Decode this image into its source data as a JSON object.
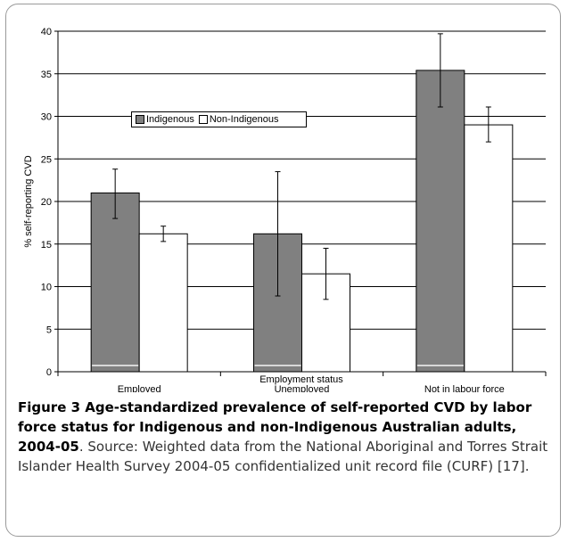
{
  "figure": {
    "caption_title": "Figure 3 Age-standardized prevalence of self-reported CVD by labor force status for Indigenous and non-Indigenous Australian adults, 2004-05",
    "caption_body": ". Source: Weighted data from the National Aboriginal and Torres Strait Islander Health Survey 2004-05 confidentialized unit record file (CURF) [17]."
  },
  "colors": {
    "indigenous": "#808080",
    "non_indigenous": "#ffffff",
    "gridline": "#000000",
    "frame": "#9a9a9a"
  },
  "chart_data": {
    "type": "bar",
    "xlabel": "Employment status",
    "ylabel": "% self-reporting CVD",
    "ylim": [
      0,
      40
    ],
    "yticks": [
      0,
      5,
      10,
      15,
      20,
      25,
      30,
      35,
      40
    ],
    "grid": true,
    "legend_position": "top-left",
    "categories": [
      "Employed",
      "Unemployed",
      "Not in labour force"
    ],
    "series": [
      {
        "name": "Indigenous",
        "color": "#808080",
        "values": [
          21.0,
          16.2,
          35.4
        ],
        "error_low": [
          18.0,
          8.9,
          31.1
        ],
        "error_high": [
          23.8,
          23.5,
          39.7
        ]
      },
      {
        "name": "Non-Indigenous",
        "color": "#ffffff",
        "values": [
          16.2,
          11.5,
          29.0
        ],
        "error_low": [
          15.3,
          8.5,
          27.0
        ],
        "error_high": [
          17.1,
          14.5,
          31.1
        ]
      }
    ]
  }
}
